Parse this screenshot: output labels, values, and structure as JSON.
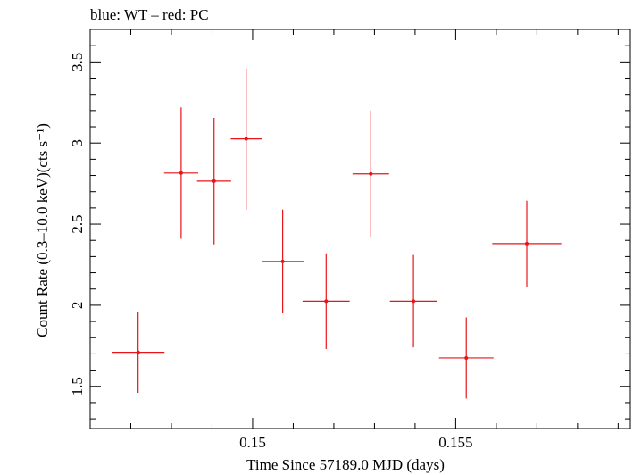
{
  "chart_data": {
    "type": "scatter",
    "title": "blue: WT – red: PC",
    "xlabel": "Time Since 57189.0 MJD (days)",
    "ylabel": "Count Rate (0.3–10.0 keV)(cts s⁻¹)",
    "xlim": [
      0.146,
      0.1593
    ],
    "ylim": [
      1.24,
      3.7
    ],
    "x_ticks": [
      0.15,
      0.155
    ],
    "x_tick_labels": [
      "0.15",
      "0.155"
    ],
    "x_minor_step": 0.001,
    "y_ticks": [
      1.5,
      2,
      2.5,
      3,
      3.5
    ],
    "y_tick_labels": [
      "1.5",
      "2",
      "2.5",
      "3",
      "3.5"
    ],
    "y_minor_step": 0.1,
    "grid": false,
    "series": [
      {
        "color": "#e8141a",
        "points": [
          {
            "x": 0.14718,
            "y": 1.71,
            "xerr": 0.00065,
            "yerr": 0.25
          },
          {
            "x": 0.14824,
            "y": 2.815,
            "xerr": 0.00042,
            "yerr": 0.405
          },
          {
            "x": 0.14905,
            "y": 2.765,
            "xerr": 0.00042,
            "yerr": 0.39
          },
          {
            "x": 0.14984,
            "y": 3.025,
            "xerr": 0.00038,
            "yerr": 0.435
          },
          {
            "x": 0.15074,
            "y": 2.27,
            "xerr": 0.00052,
            "yerr": 0.32
          },
          {
            "x": 0.15181,
            "y": 2.025,
            "xerr": 0.00058,
            "yerr": 0.295
          },
          {
            "x": 0.15291,
            "y": 2.81,
            "xerr": 0.00045,
            "yerr": 0.39
          },
          {
            "x": 0.15396,
            "y": 2.025,
            "xerr": 0.00058,
            "yerr": 0.285
          },
          {
            "x": 0.15526,
            "y": 1.675,
            "xerr": 0.00067,
            "yerr": 0.25
          },
          {
            "x": 0.15675,
            "y": 2.38,
            "xerr": 0.00085,
            "yerr": 0.265
          }
        ]
      }
    ]
  }
}
